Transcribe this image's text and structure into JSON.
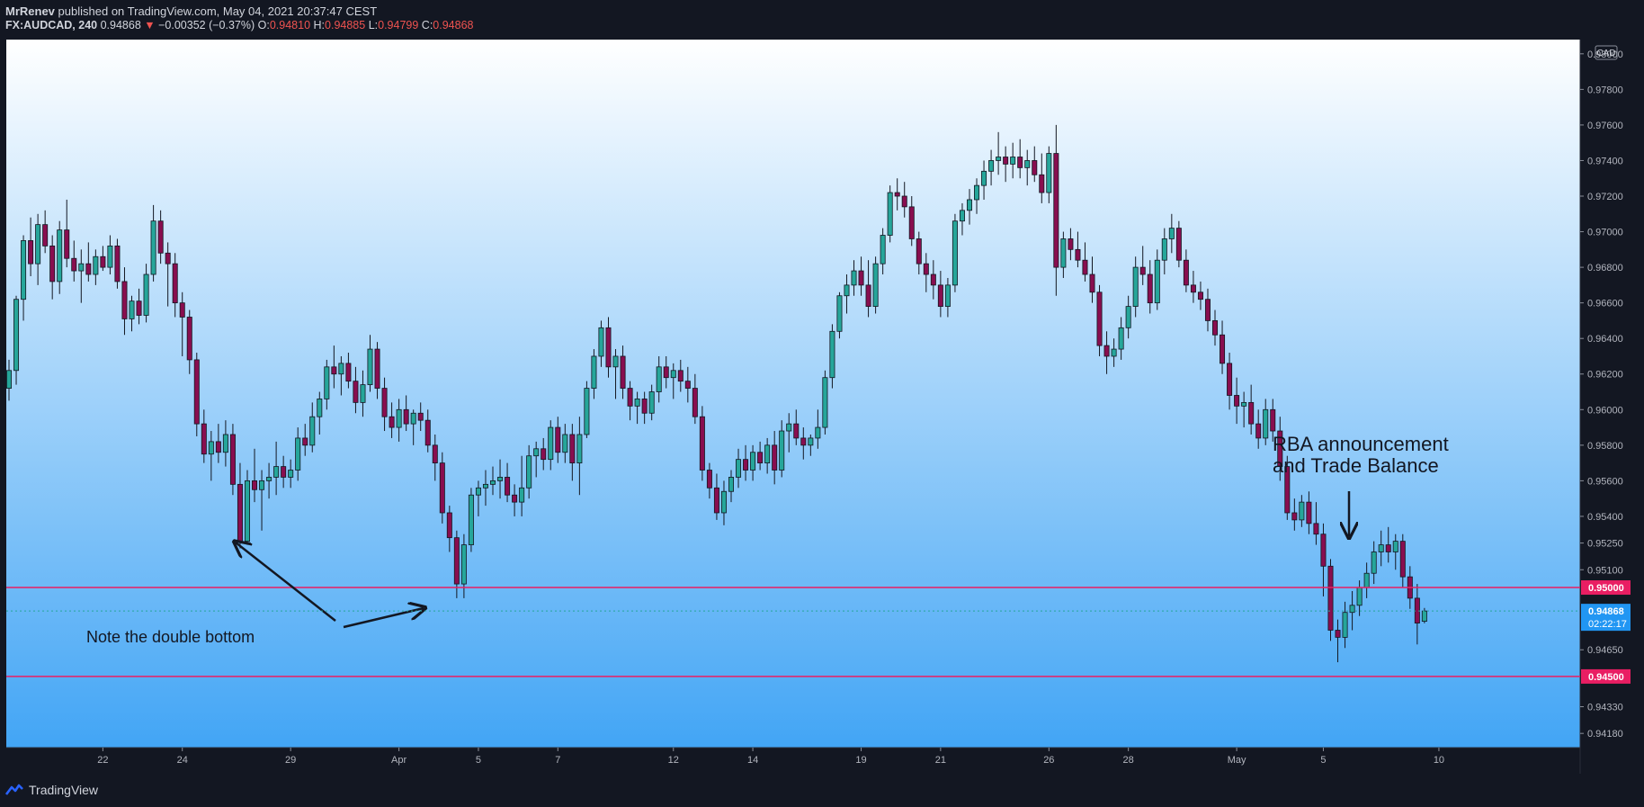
{
  "header": {
    "publisher": "MrRenev",
    "published_text": "published on TradingView.com, May 04, 2021 20:37:47 CEST",
    "symbol": "FX:AUDCAD, 240",
    "last": "0.94868",
    "change": "−0.00352 (−0.37%)",
    "o_label": "O:",
    "o": "0.94810",
    "h_label": "H:",
    "h": "0.94885",
    "l_label": "L:",
    "l": "0.94799",
    "c_label": "C:",
    "c": "0.94868"
  },
  "footer": {
    "brand": "TradingView",
    "brand_icon": "tradingview-logo-icon"
  },
  "colors": {
    "up": "#26a69a",
    "down": "#ef5350",
    "level": "#e91e63",
    "bg_top": "#ffffff",
    "bg_bottom": "#42a5f5",
    "ui": "#131722"
  },
  "chart_data": {
    "type": "candlestick",
    "title": "FX:AUDCAD, 240",
    "currency": "CAD",
    "ylim": [
      0.941,
      0.9808
    ],
    "y_ticks": [
      0.98,
      0.978,
      0.976,
      0.974,
      0.972,
      0.97,
      0.968,
      0.966,
      0.964,
      0.962,
      0.96,
      0.958,
      0.956,
      0.954,
      0.9525,
      0.951,
      0.9465,
      0.9433,
      0.9418
    ],
    "x_ticks": [
      {
        "label": "22",
        "i": 13
      },
      {
        "label": "24",
        "i": 24
      },
      {
        "label": "29",
        "i": 39
      },
      {
        "label": "Apr",
        "i": 54
      },
      {
        "label": "5",
        "i": 65
      },
      {
        "label": "7",
        "i": 76
      },
      {
        "label": "12",
        "i": 92
      },
      {
        "label": "14",
        "i": 103
      },
      {
        "label": "19",
        "i": 118
      },
      {
        "label": "21",
        "i": 129
      },
      {
        "label": "26",
        "i": 144
      },
      {
        "label": "28",
        "i": 155
      },
      {
        "label": "May",
        "i": 170
      },
      {
        "label": "5",
        "i": 182
      },
      {
        "label": "10",
        "i": 198
      }
    ],
    "h_levels": [
      {
        "value": 0.95,
        "label": "0.95000"
      },
      {
        "value": 0.945,
        "label": "0.94500"
      }
    ],
    "last_price": {
      "value": 0.94868,
      "label": "0.94868",
      "countdown": "02:22:17"
    },
    "annotations": [
      {
        "text": "Note the double bottom"
      },
      {
        "text": "RBA announcement",
        "text2": "and Trade Balance"
      }
    ],
    "candles": [
      [
        0.9612,
        0.9628,
        0.9605,
        0.9622
      ],
      [
        0.9622,
        0.9664,
        0.9614,
        0.9662
      ],
      [
        0.9662,
        0.9698,
        0.965,
        0.9695
      ],
      [
        0.9695,
        0.9708,
        0.9675,
        0.9682
      ],
      [
        0.9682,
        0.971,
        0.967,
        0.9704
      ],
      [
        0.9704,
        0.9712,
        0.9688,
        0.9692
      ],
      [
        0.9692,
        0.9698,
        0.9662,
        0.9672
      ],
      [
        0.9672,
        0.9706,
        0.9665,
        0.9701
      ],
      [
        0.9701,
        0.9718,
        0.968,
        0.9685
      ],
      [
        0.9685,
        0.9695,
        0.9672,
        0.9678
      ],
      [
        0.9678,
        0.969,
        0.966,
        0.9682
      ],
      [
        0.9682,
        0.9694,
        0.9672,
        0.9676
      ],
      [
        0.9676,
        0.969,
        0.967,
        0.9686
      ],
      [
        0.9686,
        0.9692,
        0.9678,
        0.968
      ],
      [
        0.968,
        0.9698,
        0.9676,
        0.9692
      ],
      [
        0.9692,
        0.9696,
        0.9668,
        0.9672
      ],
      [
        0.9672,
        0.968,
        0.9642,
        0.9651
      ],
      [
        0.9651,
        0.9664,
        0.9644,
        0.9661
      ],
      [
        0.9661,
        0.9668,
        0.9648,
        0.9653
      ],
      [
        0.9653,
        0.9682,
        0.9649,
        0.9676
      ],
      [
        0.9676,
        0.9715,
        0.9672,
        0.9706
      ],
      [
        0.9706,
        0.9712,
        0.9682,
        0.9688
      ],
      [
        0.9688,
        0.9694,
        0.9658,
        0.9682
      ],
      [
        0.9682,
        0.9688,
        0.9652,
        0.966
      ],
      [
        0.966,
        0.9666,
        0.963,
        0.9652
      ],
      [
        0.9652,
        0.9656,
        0.962,
        0.9628
      ],
      [
        0.9628,
        0.9632,
        0.9585,
        0.9592
      ],
      [
        0.9592,
        0.96,
        0.957,
        0.9575
      ],
      [
        0.9575,
        0.9588,
        0.956,
        0.9582
      ],
      [
        0.9582,
        0.9592,
        0.957,
        0.9576
      ],
      [
        0.9576,
        0.9594,
        0.9568,
        0.9586
      ],
      [
        0.9586,
        0.9592,
        0.9552,
        0.9558
      ],
      [
        0.9558,
        0.957,
        0.9522,
        0.9526
      ],
      [
        0.9526,
        0.9566,
        0.9524,
        0.956
      ],
      [
        0.956,
        0.9578,
        0.9548,
        0.9555
      ],
      [
        0.9555,
        0.9566,
        0.9532,
        0.956
      ],
      [
        0.956,
        0.957,
        0.955,
        0.9562
      ],
      [
        0.9562,
        0.9582,
        0.9552,
        0.9568
      ],
      [
        0.9568,
        0.9574,
        0.9556,
        0.9562
      ],
      [
        0.9562,
        0.9572,
        0.9556,
        0.9566
      ],
      [
        0.9566,
        0.959,
        0.956,
        0.9584
      ],
      [
        0.9584,
        0.9592,
        0.9574,
        0.958
      ],
      [
        0.958,
        0.9604,
        0.9576,
        0.9596
      ],
      [
        0.9596,
        0.961,
        0.9586,
        0.9606
      ],
      [
        0.9606,
        0.9628,
        0.96,
        0.9624
      ],
      [
        0.9624,
        0.9636,
        0.9612,
        0.962
      ],
      [
        0.962,
        0.963,
        0.9608,
        0.9626
      ],
      [
        0.9626,
        0.9632,
        0.9612,
        0.9616
      ],
      [
        0.9616,
        0.9624,
        0.9598,
        0.9604
      ],
      [
        0.9604,
        0.9622,
        0.9596,
        0.9614
      ],
      [
        0.9614,
        0.9642,
        0.961,
        0.9634
      ],
      [
        0.9634,
        0.9638,
        0.9606,
        0.9612
      ],
      [
        0.9612,
        0.9618,
        0.9588,
        0.9596
      ],
      [
        0.9596,
        0.9604,
        0.9584,
        0.959
      ],
      [
        0.959,
        0.9606,
        0.9582,
        0.96
      ],
      [
        0.96,
        0.9608,
        0.9588,
        0.9592
      ],
      [
        0.9592,
        0.96,
        0.958,
        0.9598
      ],
      [
        0.9598,
        0.9604,
        0.9588,
        0.9594
      ],
      [
        0.9594,
        0.96,
        0.9576,
        0.958
      ],
      [
        0.958,
        0.9586,
        0.956,
        0.957
      ],
      [
        0.957,
        0.9576,
        0.9536,
        0.9542
      ],
      [
        0.9542,
        0.9546,
        0.952,
        0.9528
      ],
      [
        0.9528,
        0.9532,
        0.9494,
        0.9502
      ],
      [
        0.9502,
        0.953,
        0.9494,
        0.9524
      ],
      [
        0.9524,
        0.9556,
        0.952,
        0.9552
      ],
      [
        0.9552,
        0.956,
        0.954,
        0.9556
      ],
      [
        0.9556,
        0.9566,
        0.9546,
        0.9558
      ],
      [
        0.9558,
        0.9568,
        0.9552,
        0.956
      ],
      [
        0.956,
        0.9572,
        0.955,
        0.9562
      ],
      [
        0.9562,
        0.957,
        0.9548,
        0.9552
      ],
      [
        0.9552,
        0.9558,
        0.954,
        0.9548
      ],
      [
        0.9548,
        0.9574,
        0.954,
        0.9556
      ],
      [
        0.9556,
        0.958,
        0.955,
        0.9574
      ],
      [
        0.9574,
        0.9582,
        0.9562,
        0.9578
      ],
      [
        0.9578,
        0.9584,
        0.9566,
        0.9572
      ],
      [
        0.9572,
        0.9594,
        0.9566,
        0.959
      ],
      [
        0.959,
        0.9596,
        0.957,
        0.9576
      ],
      [
        0.9576,
        0.9592,
        0.957,
        0.9586
      ],
      [
        0.9586,
        0.9592,
        0.956,
        0.957
      ],
      [
        0.957,
        0.9596,
        0.9552,
        0.9586
      ],
      [
        0.9586,
        0.9616,
        0.9584,
        0.9612
      ],
      [
        0.9612,
        0.9634,
        0.9606,
        0.963
      ],
      [
        0.963,
        0.965,
        0.9624,
        0.9646
      ],
      [
        0.9646,
        0.9652,
        0.9618,
        0.9624
      ],
      [
        0.9624,
        0.9634,
        0.9606,
        0.963
      ],
      [
        0.963,
        0.9636,
        0.9606,
        0.9612
      ],
      [
        0.9612,
        0.9616,
        0.9594,
        0.9602
      ],
      [
        0.9602,
        0.961,
        0.9592,
        0.9606
      ],
      [
        0.9606,
        0.961,
        0.9592,
        0.9598
      ],
      [
        0.9598,
        0.9614,
        0.9594,
        0.961
      ],
      [
        0.961,
        0.963,
        0.9604,
        0.9624
      ],
      [
        0.9624,
        0.963,
        0.9612,
        0.9618
      ],
      [
        0.9618,
        0.9626,
        0.9606,
        0.9622
      ],
      [
        0.9622,
        0.9628,
        0.961,
        0.9616
      ],
      [
        0.9616,
        0.9624,
        0.9604,
        0.9612
      ],
      [
        0.9612,
        0.962,
        0.9592,
        0.9596
      ],
      [
        0.9596,
        0.9602,
        0.956,
        0.9566
      ],
      [
        0.9566,
        0.957,
        0.955,
        0.9556
      ],
      [
        0.9556,
        0.9564,
        0.9538,
        0.9542
      ],
      [
        0.9542,
        0.956,
        0.9535,
        0.9554
      ],
      [
        0.9554,
        0.9566,
        0.9548,
        0.9562
      ],
      [
        0.9562,
        0.9578,
        0.9556,
        0.9572
      ],
      [
        0.9572,
        0.958,
        0.956,
        0.9566
      ],
      [
        0.9566,
        0.958,
        0.956,
        0.9576
      ],
      [
        0.9576,
        0.9582,
        0.9566,
        0.957
      ],
      [
        0.957,
        0.9584,
        0.9564,
        0.958
      ],
      [
        0.958,
        0.9588,
        0.9558,
        0.9566
      ],
      [
        0.9566,
        0.9594,
        0.9562,
        0.9588
      ],
      [
        0.9588,
        0.9598,
        0.9576,
        0.9592
      ],
      [
        0.9592,
        0.96,
        0.958,
        0.9584
      ],
      [
        0.9584,
        0.959,
        0.9572,
        0.958
      ],
      [
        0.958,
        0.9586,
        0.9574,
        0.9584
      ],
      [
        0.9584,
        0.96,
        0.9578,
        0.959
      ],
      [
        0.959,
        0.9622,
        0.9586,
        0.9618
      ],
      [
        0.9618,
        0.9648,
        0.9612,
        0.9644
      ],
      [
        0.9644,
        0.9666,
        0.964,
        0.9664
      ],
      [
        0.9664,
        0.9676,
        0.9654,
        0.967
      ],
      [
        0.967,
        0.9684,
        0.9664,
        0.9678
      ],
      [
        0.9678,
        0.9686,
        0.9664,
        0.967
      ],
      [
        0.967,
        0.9684,
        0.9652,
        0.9658
      ],
      [
        0.9658,
        0.9686,
        0.9654,
        0.9682
      ],
      [
        0.9682,
        0.9702,
        0.9676,
        0.9698
      ],
      [
        0.9698,
        0.9726,
        0.9694,
        0.9722
      ],
      [
        0.9722,
        0.973,
        0.9712,
        0.972
      ],
      [
        0.972,
        0.9728,
        0.9708,
        0.9714
      ],
      [
        0.9714,
        0.972,
        0.9692,
        0.9696
      ],
      [
        0.9696,
        0.97,
        0.9676,
        0.9682
      ],
      [
        0.9682,
        0.9688,
        0.9666,
        0.9676
      ],
      [
        0.9676,
        0.9684,
        0.9662,
        0.967
      ],
      [
        0.967,
        0.9678,
        0.9652,
        0.9658
      ],
      [
        0.9658,
        0.9674,
        0.9652,
        0.967
      ],
      [
        0.967,
        0.971,
        0.9666,
        0.9706
      ],
      [
        0.9706,
        0.9716,
        0.9698,
        0.9712
      ],
      [
        0.9712,
        0.9724,
        0.9704,
        0.9718
      ],
      [
        0.9718,
        0.973,
        0.971,
        0.9726
      ],
      [
        0.9726,
        0.974,
        0.9718,
        0.9734
      ],
      [
        0.9734,
        0.9746,
        0.9726,
        0.974
      ],
      [
        0.974,
        0.9756,
        0.9732,
        0.9742
      ],
      [
        0.9742,
        0.9748,
        0.9728,
        0.9738
      ],
      [
        0.9738,
        0.975,
        0.973,
        0.9742
      ],
      [
        0.9742,
        0.9752,
        0.973,
        0.9736
      ],
      [
        0.9736,
        0.9746,
        0.9726,
        0.974
      ],
      [
        0.974,
        0.9748,
        0.9728,
        0.9732
      ],
      [
        0.9732,
        0.9744,
        0.9716,
        0.9722
      ],
      [
        0.9722,
        0.9748,
        0.9716,
        0.9744
      ],
      [
        0.9744,
        0.976,
        0.9664,
        0.968
      ],
      [
        0.968,
        0.97,
        0.9674,
        0.9696
      ],
      [
        0.9696,
        0.9702,
        0.9684,
        0.969
      ],
      [
        0.969,
        0.97,
        0.968,
        0.9684
      ],
      [
        0.9684,
        0.9694,
        0.9672,
        0.9676
      ],
      [
        0.9676,
        0.9686,
        0.966,
        0.9666
      ],
      [
        0.9666,
        0.967,
        0.963,
        0.9636
      ],
      [
        0.9636,
        0.9644,
        0.962,
        0.963
      ],
      [
        0.963,
        0.964,
        0.9624,
        0.9634
      ],
      [
        0.9634,
        0.9652,
        0.9628,
        0.9646
      ],
      [
        0.9646,
        0.9664,
        0.964,
        0.9658
      ],
      [
        0.9658,
        0.9686,
        0.9652,
        0.968
      ],
      [
        0.968,
        0.9692,
        0.967,
        0.9676
      ],
      [
        0.9676,
        0.9684,
        0.9654,
        0.966
      ],
      [
        0.966,
        0.969,
        0.9656,
        0.9684
      ],
      [
        0.9684,
        0.9702,
        0.9676,
        0.9696
      ],
      [
        0.9696,
        0.971,
        0.9688,
        0.9702
      ],
      [
        0.9702,
        0.9706,
        0.968,
        0.9684
      ],
      [
        0.9684,
        0.969,
        0.9666,
        0.967
      ],
      [
        0.967,
        0.9678,
        0.966,
        0.9666
      ],
      [
        0.9666,
        0.9672,
        0.9656,
        0.9662
      ],
      [
        0.9662,
        0.9668,
        0.9644,
        0.965
      ],
      [
        0.965,
        0.9656,
        0.9636,
        0.9642
      ],
      [
        0.9642,
        0.965,
        0.962,
        0.9626
      ],
      [
        0.9626,
        0.9632,
        0.96,
        0.9608
      ],
      [
        0.9608,
        0.9618,
        0.9592,
        0.9602
      ],
      [
        0.9602,
        0.961,
        0.959,
        0.9604
      ],
      [
        0.9604,
        0.9614,
        0.9586,
        0.9592
      ],
      [
        0.9592,
        0.96,
        0.9578,
        0.9584
      ],
      [
        0.9584,
        0.9606,
        0.958,
        0.96
      ],
      [
        0.96,
        0.9606,
        0.9582,
        0.9588
      ],
      [
        0.9588,
        0.9596,
        0.956,
        0.9568
      ],
      [
        0.9568,
        0.9574,
        0.9538,
        0.9542
      ],
      [
        0.9542,
        0.955,
        0.9532,
        0.9538
      ],
      [
        0.9538,
        0.9552,
        0.9534,
        0.9548
      ],
      [
        0.9548,
        0.9554,
        0.953,
        0.9536
      ],
      [
        0.9536,
        0.9548,
        0.9524,
        0.953
      ],
      [
        0.953,
        0.9536,
        0.9495,
        0.9512
      ],
      [
        0.9512,
        0.9516,
        0.947,
        0.9476
      ],
      [
        0.9476,
        0.9482,
        0.9458,
        0.9472
      ],
      [
        0.9472,
        0.9492,
        0.9466,
        0.9486
      ],
      [
        0.9486,
        0.9498,
        0.9476,
        0.949
      ],
      [
        0.949,
        0.9504,
        0.9484,
        0.95
      ],
      [
        0.95,
        0.9514,
        0.9494,
        0.9508
      ],
      [
        0.9508,
        0.9526,
        0.9502,
        0.952
      ],
      [
        0.952,
        0.9532,
        0.9512,
        0.9524
      ],
      [
        0.9524,
        0.9534,
        0.9514,
        0.952
      ],
      [
        0.952,
        0.953,
        0.951,
        0.9526
      ],
      [
        0.9526,
        0.953,
        0.95,
        0.9506
      ],
      [
        0.9506,
        0.9512,
        0.9488,
        0.9494
      ],
      [
        0.9494,
        0.9502,
        0.9468,
        0.948
      ],
      [
        0.9481,
        0.94885,
        0.94799,
        0.94868
      ]
    ]
  }
}
